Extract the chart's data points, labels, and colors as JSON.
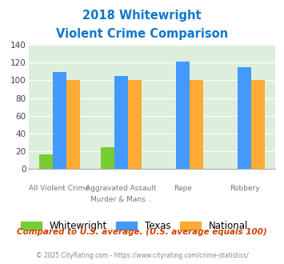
{
  "title_line1": "2018 Whitewright",
  "title_line2": "Violent Crime Comparison",
  "cat_labels_top": [
    "",
    "Aggravated Assault",
    "",
    ""
  ],
  "cat_labels_bot": [
    "All Violent Crime",
    "Murder & Mans...",
    "Rape",
    "Robbery"
  ],
  "whitewright": [
    16,
    25,
    0,
    0
  ],
  "texas": [
    109,
    105,
    121,
    115
  ],
  "national": [
    100,
    100,
    100,
    100
  ],
  "color_whitewright": "#77cc33",
  "color_texas": "#4499ff",
  "color_national": "#ffaa33",
  "ylim": [
    0,
    140
  ],
  "yticks": [
    0,
    20,
    40,
    60,
    80,
    100,
    120,
    140
  ],
  "bg_color": "#ddeedd",
  "footer_note": "Compared to U.S. average. (U.S. average equals 100)",
  "copyright": "© 2025 CityRating.com - https://www.cityrating.com/crime-statistics/",
  "title_color": "#1177cc",
  "footer_color": "#cc4400",
  "copyright_color": "#888888"
}
